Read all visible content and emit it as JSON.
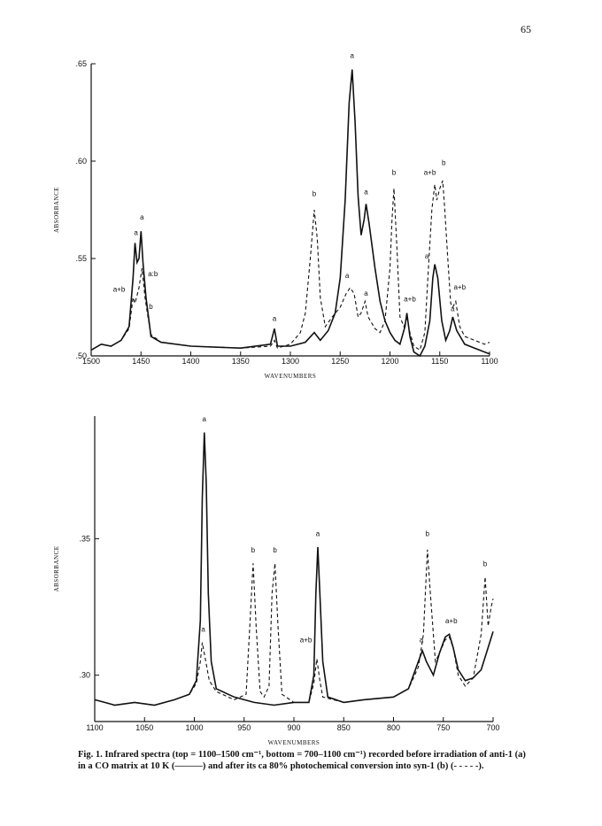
{
  "page_number": "65",
  "caption": "Fig. 1. Infrared spectra (top = 1100–1500 cm⁻¹, bottom = 700–1100 cm⁻¹) recorded before irradiation of anti-1 (a) in a CO matrix at 10 K (———) and after its ca 80% photochemical conversion into syn-1 (b) (- - - - -).",
  "chart_data": [
    {
      "type": "line",
      "xlabel": "WAVENUMBERS",
      "ylabel": "ABSORBANCE",
      "xlim": [
        1500,
        1100
      ],
      "ylim": [
        0.5,
        0.65
      ],
      "x_ticks": [
        "1500",
        "1450",
        "1400",
        "1350",
        "1300",
        "1250",
        "1200",
        "1150",
        "1100"
      ],
      "y_ticks": [
        ".65",
        ".60",
        ".55",
        ".50"
      ],
      "y_tick_values": [
        0.65,
        0.6,
        0.55,
        0.5
      ],
      "series": [
        {
          "name": "a",
          "style": "solid",
          "points": [
            [
              1500,
              0.503
            ],
            [
              1490,
              0.506
            ],
            [
              1480,
              0.505
            ],
            [
              1470,
              0.508
            ],
            [
              1462,
              0.515
            ],
            [
              1458,
              0.54
            ],
            [
              1456,
              0.558
            ],
            [
              1454,
              0.548
            ],
            [
              1452,
              0.55
            ],
            [
              1450,
              0.564
            ],
            [
              1448,
              0.548
            ],
            [
              1445,
              0.53
            ],
            [
              1442,
              0.518
            ],
            [
              1440,
              0.51
            ],
            [
              1430,
              0.507
            ],
            [
              1400,
              0.505
            ],
            [
              1350,
              0.504
            ],
            [
              1320,
              0.506
            ],
            [
              1316,
              0.514
            ],
            [
              1313,
              0.505
            ],
            [
              1300,
              0.505
            ],
            [
              1285,
              0.507
            ],
            [
              1276,
              0.512
            ],
            [
              1270,
              0.508
            ],
            [
              1262,
              0.513
            ],
            [
              1255,
              0.522
            ],
            [
              1250,
              0.54
            ],
            [
              1245,
              0.58
            ],
            [
              1241,
              0.63
            ],
            [
              1238,
              0.647
            ],
            [
              1235,
              0.62
            ],
            [
              1232,
              0.582
            ],
            [
              1229,
              0.562
            ],
            [
              1226,
              0.57
            ],
            [
              1224,
              0.578
            ],
            [
              1221,
              0.568
            ],
            [
              1215,
              0.545
            ],
            [
              1210,
              0.528
            ],
            [
              1205,
              0.518
            ],
            [
              1200,
              0.512
            ],
            [
              1195,
              0.508
            ],
            [
              1190,
              0.506
            ],
            [
              1185,
              0.515
            ],
            [
              1183,
              0.522
            ],
            [
              1180,
              0.51
            ],
            [
              1176,
              0.502
            ],
            [
              1170,
              0.5
            ],
            [
              1165,
              0.505
            ],
            [
              1160,
              0.518
            ],
            [
              1157,
              0.54
            ],
            [
              1155,
              0.547
            ],
            [
              1152,
              0.54
            ],
            [
              1148,
              0.518
            ],
            [
              1144,
              0.508
            ],
            [
              1140,
              0.513
            ],
            [
              1137,
              0.52
            ],
            [
              1133,
              0.513
            ],
            [
              1125,
              0.506
            ],
            [
              1115,
              0.504
            ],
            [
              1105,
              0.502
            ],
            [
              1100,
              0.501
            ]
          ]
        },
        {
          "name": "b",
          "style": "dashed",
          "points": [
            [
              1500,
              0.503
            ],
            [
              1490,
              0.506
            ],
            [
              1480,
              0.505
            ],
            [
              1470,
              0.508
            ],
            [
              1462,
              0.514
            ],
            [
              1458,
              0.53
            ],
            [
              1456,
              0.527
            ],
            [
              1452,
              0.535
            ],
            [
              1449,
              0.545
            ],
            [
              1446,
              0.53
            ],
            [
              1443,
              0.52
            ],
            [
              1440,
              0.511
            ],
            [
              1430,
              0.507
            ],
            [
              1400,
              0.505
            ],
            [
              1350,
              0.504
            ],
            [
              1320,
              0.505
            ],
            [
              1316,
              0.508
            ],
            [
              1313,
              0.504
            ],
            [
              1300,
              0.506
            ],
            [
              1290,
              0.512
            ],
            [
              1285,
              0.522
            ],
            [
              1280,
              0.55
            ],
            [
              1276,
              0.575
            ],
            [
              1273,
              0.56
            ],
            [
              1270,
              0.53
            ],
            [
              1265,
              0.515
            ],
            [
              1258,
              0.52
            ],
            [
              1250,
              0.525
            ],
            [
              1244,
              0.532
            ],
            [
              1240,
              0.535
            ],
            [
              1236,
              0.532
            ],
            [
              1232,
              0.52
            ],
            [
              1229,
              0.522
            ],
            [
              1225,
              0.528
            ],
            [
              1222,
              0.52
            ],
            [
              1215,
              0.514
            ],
            [
              1210,
              0.512
            ],
            [
              1205,
              0.518
            ],
            [
              1200,
              0.545
            ],
            [
              1198,
              0.57
            ],
            [
              1196,
              0.586
            ],
            [
              1193,
              0.555
            ],
            [
              1190,
              0.52
            ],
            [
              1186,
              0.515
            ],
            [
              1183,
              0.52
            ],
            [
              1180,
              0.512
            ],
            [
              1176,
              0.505
            ],
            [
              1170,
              0.503
            ],
            [
              1165,
              0.512
            ],
            [
              1162,
              0.54
            ],
            [
              1158,
              0.575
            ],
            [
              1155,
              0.588
            ],
            [
              1153,
              0.58
            ],
            [
              1150,
              0.586
            ],
            [
              1147,
              0.59
            ],
            [
              1145,
              0.575
            ],
            [
              1142,
              0.55
            ],
            [
              1139,
              0.527
            ],
            [
              1137,
              0.525
            ],
            [
              1134,
              0.528
            ],
            [
              1130,
              0.515
            ],
            [
              1125,
              0.51
            ],
            [
              1115,
              0.508
            ],
            [
              1105,
              0.506
            ],
            [
              1100,
              0.507
            ]
          ]
        }
      ],
      "annotations": [
        {
          "text": "a",
          "x": 1238,
          "y": 0.653
        },
        {
          "text": "b",
          "x": 1276,
          "y": 0.582
        },
        {
          "text": "a",
          "x": 1224,
          "y": 0.583
        },
        {
          "text": "b",
          "x": 1196,
          "y": 0.593
        },
        {
          "text": "a+b",
          "x": 1160,
          "y": 0.593
        },
        {
          "text": "b",
          "x": 1146,
          "y": 0.598
        },
        {
          "text": "a",
          "x": 1455,
          "y": 0.562
        },
        {
          "text": "a",
          "x": 1449,
          "y": 0.57
        },
        {
          "text": "a:b",
          "x": 1438,
          "y": 0.541
        },
        {
          "text": "a+b",
          "x": 1472,
          "y": 0.533
        },
        {
          "text": "b",
          "x": 1440,
          "y": 0.524
        },
        {
          "text": "a",
          "x": 1243,
          "y": 0.54
        },
        {
          "text": "a",
          "x": 1224,
          "y": 0.531
        },
        {
          "text": "a+b",
          "x": 1180,
          "y": 0.528
        },
        {
          "text": "a",
          "x": 1163,
          "y": 0.55
        },
        {
          "text": "a+b",
          "x": 1130,
          "y": 0.534
        },
        {
          "text": "a",
          "x": 1137,
          "y": 0.523
        },
        {
          "text": "a",
          "x": 1316,
          "y": 0.518
        }
      ]
    },
    {
      "type": "line",
      "xlabel": "WAVENUMBERS",
      "ylabel": "ABSORBANCE",
      "xlim": [
        1100,
        700
      ],
      "ylim": [
        0.283,
        0.395
      ],
      "x_ticks": [
        "1100",
        "1050",
        "1000",
        "950",
        "900",
        "850",
        "800",
        "750",
        "700"
      ],
      "y_ticks": [
        ".35",
        ".30"
      ],
      "y_tick_values": [
        0.35,
        0.3
      ],
      "series": [
        {
          "name": "a",
          "style": "solid",
          "points": [
            [
              1100,
              0.291
            ],
            [
              1090,
              0.29
            ],
            [
              1080,
              0.289
            ],
            [
              1060,
              0.29
            ],
            [
              1040,
              0.289
            ],
            [
              1020,
              0.291
            ],
            [
              1005,
              0.293
            ],
            [
              998,
              0.298
            ],
            [
              994,
              0.32
            ],
            [
              992,
              0.365
            ],
            [
              990,
              0.389
            ],
            [
              988,
              0.37
            ],
            [
              986,
              0.33
            ],
            [
              983,
              0.305
            ],
            [
              978,
              0.295
            ],
            [
              960,
              0.292
            ],
            [
              940,
              0.29
            ],
            [
              920,
              0.289
            ],
            [
              900,
              0.29
            ],
            [
              885,
              0.29
            ],
            [
              880,
              0.3
            ],
            [
              878,
              0.33
            ],
            [
              876,
              0.347
            ],
            [
              874,
              0.33
            ],
            [
              871,
              0.305
            ],
            [
              866,
              0.292
            ],
            [
              850,
              0.29
            ],
            [
              830,
              0.291
            ],
            [
              800,
              0.292
            ],
            [
              785,
              0.295
            ],
            [
              775,
              0.305
            ],
            [
              771,
              0.309
            ],
            [
              767,
              0.305
            ],
            [
              760,
              0.3
            ],
            [
              754,
              0.308
            ],
            [
              748,
              0.314
            ],
            [
              744,
              0.315
            ],
            [
              740,
              0.31
            ],
            [
              735,
              0.302
            ],
            [
              728,
              0.298
            ],
            [
              720,
              0.299
            ],
            [
              712,
              0.302
            ],
            [
              706,
              0.309
            ],
            [
              700,
              0.316
            ]
          ]
        },
        {
          "name": "b",
          "style": "dashed",
          "points": [
            [
              1100,
              0.291
            ],
            [
              1090,
              0.29
            ],
            [
              1080,
              0.289
            ],
            [
              1060,
              0.29
            ],
            [
              1040,
              0.289
            ],
            [
              1020,
              0.291
            ],
            [
              1005,
              0.293
            ],
            [
              998,
              0.297
            ],
            [
              994,
              0.305
            ],
            [
              992,
              0.312
            ],
            [
              989,
              0.306
            ],
            [
              985,
              0.298
            ],
            [
              978,
              0.294
            ],
            [
              960,
              0.291
            ],
            [
              948,
              0.293
            ],
            [
              944,
              0.32
            ],
            [
              941,
              0.341
            ],
            [
              938,
              0.318
            ],
            [
              934,
              0.294
            ],
            [
              930,
              0.292
            ],
            [
              925,
              0.296
            ],
            [
              922,
              0.33
            ],
            [
              919,
              0.341
            ],
            [
              916,
              0.318
            ],
            [
              912,
              0.293
            ],
            [
              900,
              0.29
            ],
            [
              885,
              0.29
            ],
            [
              880,
              0.297
            ],
            [
              877,
              0.306
            ],
            [
              874,
              0.298
            ],
            [
              871,
              0.292
            ],
            [
              850,
              0.29
            ],
            [
              830,
              0.291
            ],
            [
              800,
              0.292
            ],
            [
              785,
              0.295
            ],
            [
              775,
              0.303
            ],
            [
              770,
              0.315
            ],
            [
              766,
              0.346
            ],
            [
              763,
              0.33
            ],
            [
              758,
              0.305
            ],
            [
              754,
              0.308
            ],
            [
              748,
              0.313
            ],
            [
              744,
              0.314
            ],
            [
              740,
              0.31
            ],
            [
              735,
              0.3
            ],
            [
              728,
              0.296
            ],
            [
              720,
              0.299
            ],
            [
              712,
              0.315
            ],
            [
              708,
              0.336
            ],
            [
              705,
              0.318
            ],
            [
              702,
              0.325
            ],
            [
              700,
              0.328
            ]
          ]
        }
      ],
      "annotations": [
        {
          "text": "a",
          "x": 990,
          "y": 0.393
        },
        {
          "text": "a",
          "x": 991,
          "y": 0.316
        },
        {
          "text": "b",
          "x": 941,
          "y": 0.345
        },
        {
          "text": "b",
          "x": 919,
          "y": 0.345
        },
        {
          "text": "a",
          "x": 876,
          "y": 0.351
        },
        {
          "text": "a+b",
          "x": 888,
          "y": 0.312
        },
        {
          "text": "b",
          "x": 766,
          "y": 0.351
        },
        {
          "text": "a",
          "x": 772,
          "y": 0.312
        },
        {
          "text": "a+b",
          "x": 742,
          "y": 0.319
        },
        {
          "text": "b",
          "x": 708,
          "y": 0.34
        }
      ]
    }
  ]
}
